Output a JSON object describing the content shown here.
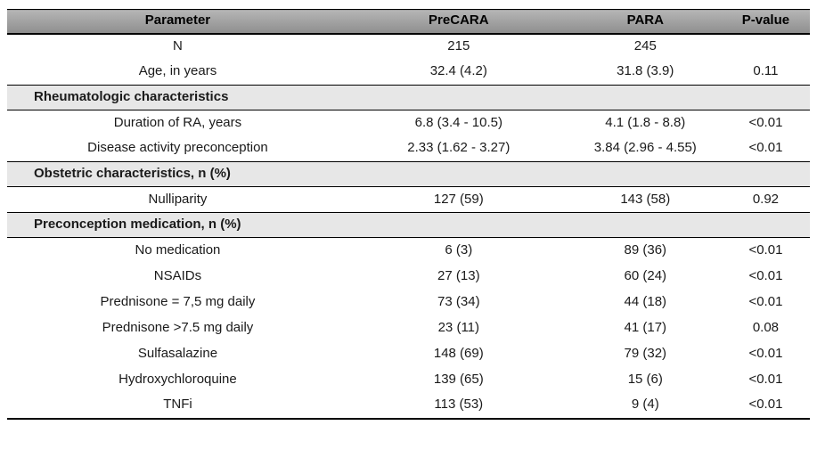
{
  "colors": {
    "header_bg_top": "#b5b5b5",
    "header_bg_bottom": "#8e8e8e",
    "section_bg": "#e7e7e7",
    "border": "#000000"
  },
  "chart_data": {
    "type": "table",
    "columns": [
      "Parameter",
      "PreCARA",
      "PARA",
      "P-value"
    ],
    "rows": [
      {
        "kind": "data",
        "cells": [
          "N",
          "215",
          "245",
          ""
        ]
      },
      {
        "kind": "data",
        "cells": [
          "Age, in years",
          "32.4 (4.2)",
          "31.8 (3.9)",
          "0.11"
        ]
      },
      {
        "kind": "section",
        "label": "Rheumatologic characteristics"
      },
      {
        "kind": "data",
        "cells": [
          "Duration of RA, years",
          "6.8 (3.4 - 10.5)",
          "4.1 (1.8 - 8.8)",
          "<0.01"
        ]
      },
      {
        "kind": "data",
        "cells": [
          "Disease activity preconception",
          "2.33 (1.62 - 3.27)",
          "3.84 (2.96 - 4.55)",
          "<0.01"
        ]
      },
      {
        "kind": "section",
        "label": "Obstetric characteristics, n (%)"
      },
      {
        "kind": "data",
        "cells": [
          "Nulliparity",
          "127 (59)",
          "143 (58)",
          "0.92"
        ]
      },
      {
        "kind": "section",
        "label": "Preconception medication, n (%)"
      },
      {
        "kind": "data",
        "cells": [
          "No medication",
          "6 (3)",
          "89 (36)",
          "<0.01"
        ]
      },
      {
        "kind": "data",
        "cells": [
          "NSAIDs",
          "27 (13)",
          "60 (24)",
          "<0.01"
        ]
      },
      {
        "kind": "data",
        "cells": [
          "Prednisone = 7,5 mg daily",
          "73 (34)",
          "44 (18)",
          "<0.01"
        ]
      },
      {
        "kind": "data",
        "cells": [
          "Prednisone >7.5 mg daily",
          "23 (11)",
          "41 (17)",
          "0.08"
        ]
      },
      {
        "kind": "data",
        "cells": [
          "Sulfasalazine",
          "148 (69)",
          "79 (32)",
          "<0.01"
        ]
      },
      {
        "kind": "data",
        "cells": [
          "Hydroxychloroquine",
          "139 (65)",
          "15 (6)",
          "<0.01"
        ]
      },
      {
        "kind": "data",
        "cells": [
          "TNFi",
          "113 (53)",
          "9 (4)",
          "<0.01"
        ]
      }
    ]
  }
}
